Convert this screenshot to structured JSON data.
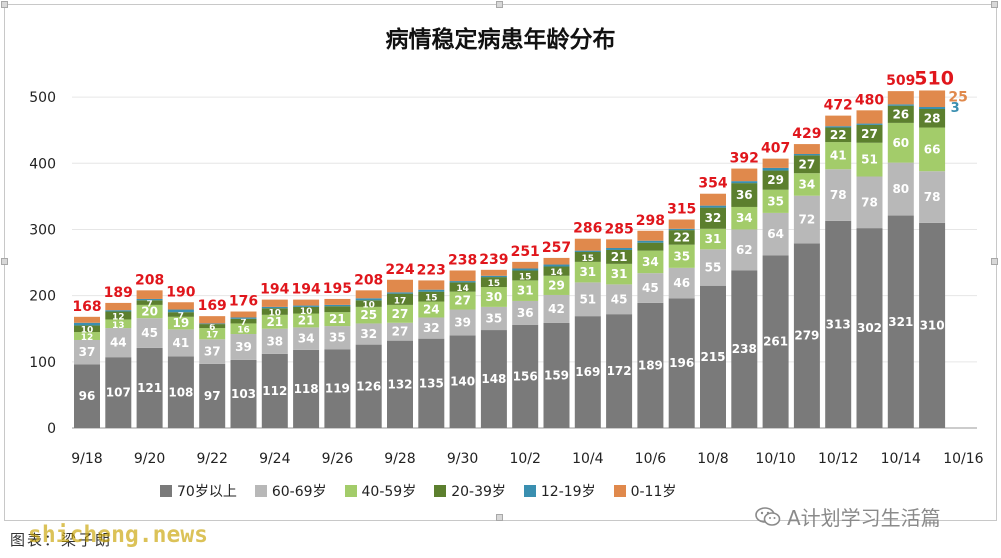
{
  "title": "病情稳定病患年龄分布",
  "source": "图表：梁子朗",
  "watermark_left": "shicheng.news",
  "watermark_right": "A计划学习生活篇",
  "watermark_icon": "wechat-icon",
  "colors": {
    "70岁以上": "#7a7a7a",
    "60-69岁": "#b8b8b8",
    "40-59岁": "#a3cc6a",
    "20-39岁": "#5c7f2e",
    "12-19岁": "#3a8fb0",
    "0-11岁": "#e0894c",
    "total": "#e0161c"
  },
  "chart_data": {
    "type": "bar",
    "stacked": true,
    "title": "病情稳定病患年龄分布",
    "categories": [
      "9/18",
      "9/19",
      "9/20",
      "9/21",
      "9/22",
      "9/23",
      "9/24",
      "9/25",
      "9/26",
      "9/27",
      "9/28",
      "9/29",
      "9/30",
      "10/1",
      "10/2",
      "10/3",
      "10/4",
      "10/5",
      "10/6",
      "10/7",
      "10/8",
      "10/9",
      "10/10",
      "10/11",
      "10/12",
      "10/13",
      "10/14",
      "10/15"
    ],
    "xtick_labels": [
      "9/18",
      "9/20",
      "9/22",
      "9/24",
      "9/26",
      "9/28",
      "9/30",
      "10/2",
      "10/4",
      "10/6",
      "10/8",
      "10/10",
      "10/12",
      "10/14",
      "10/16"
    ],
    "yticks": [
      0,
      100,
      200,
      300,
      400,
      500
    ],
    "ylim": [
      0,
      550
    ],
    "grid": true,
    "legend_position": "bottom",
    "series": [
      {
        "name": "70岁以上",
        "values": [
          96,
          107,
          121,
          108,
          97,
          103,
          112,
          118,
          119,
          126,
          132,
          135,
          140,
          148,
          156,
          159,
          169,
          172,
          189,
          196,
          215,
          238,
          261,
          279,
          313,
          302,
          321,
          310
        ]
      },
      {
        "name": "60-69岁",
        "values": [
          37,
          44,
          45,
          41,
          37,
          39,
          38,
          34,
          35,
          32,
          27,
          32,
          39,
          35,
          36,
          42,
          51,
          45,
          45,
          46,
          55,
          62,
          64,
          72,
          78,
          78,
          80,
          78
        ]
      },
      {
        "name": "40-59岁",
        "values": [
          12,
          13,
          20,
          19,
          17,
          16,
          21,
          21,
          21,
          25,
          27,
          24,
          27,
          30,
          31,
          29,
          31,
          31,
          34,
          35,
          31,
          34,
          35,
          34,
          41,
          51,
          60,
          66
        ]
      },
      {
        "name": "20-39岁",
        "values": [
          10,
          12,
          7,
          7,
          6,
          7,
          10,
          10,
          9,
          10,
          17,
          15,
          14,
          15,
          15,
          14,
          15,
          21,
          12,
          22,
          32,
          36,
          29,
          27,
          22,
          27,
          26,
          28
        ]
      },
      {
        "name": "12-19岁",
        "values": [
          4,
          2,
          2,
          4,
          1,
          2,
          2,
          2,
          2,
          3,
          2,
          3,
          2,
          2,
          3,
          3,
          2,
          3,
          3,
          2,
          3,
          3,
          4,
          2,
          2,
          2,
          2,
          3
        ]
      },
      {
        "name": "0-11岁",
        "values": [
          9,
          11,
          13,
          11,
          11,
          9,
          11,
          9,
          9,
          12,
          19,
          14,
          16,
          9,
          10,
          10,
          18,
          13,
          15,
          14,
          18,
          19,
          14,
          15,
          16,
          20,
          20,
          25
        ]
      }
    ],
    "segment_labels": [
      [
        "96",
        "37",
        "12",
        "10",
        "",
        ""
      ],
      [
        "107",
        "44",
        "13",
        "12",
        "",
        ""
      ],
      [
        "121",
        "45",
        "20",
        "7",
        "",
        ""
      ],
      [
        "108",
        "41",
        "19",
        "7",
        "",
        ""
      ],
      [
        "97",
        "37",
        "17",
        "6",
        "",
        ""
      ],
      [
        "103",
        "39",
        "16",
        "7",
        "",
        ""
      ],
      [
        "112",
        "38",
        "21",
        "10",
        "",
        ""
      ],
      [
        "118",
        "34",
        "21",
        "10",
        "",
        ""
      ],
      [
        "119",
        "35",
        "21",
        "",
        "",
        ""
      ],
      [
        "126",
        "32",
        "25",
        "10",
        "",
        ""
      ],
      [
        "132",
        "27",
        "27",
        "17",
        "",
        ""
      ],
      [
        "135",
        "32",
        "24",
        "15",
        "",
        ""
      ],
      [
        "140",
        "39",
        "27",
        "14",
        "",
        ""
      ],
      [
        "148",
        "35",
        "30",
        "15",
        "",
        ""
      ],
      [
        "156",
        "36",
        "31",
        "15",
        "",
        ""
      ],
      [
        "159",
        "42",
        "29",
        "14",
        "",
        ""
      ],
      [
        "169",
        "51",
        "31",
        "15",
        "",
        ""
      ],
      [
        "172",
        "45",
        "31",
        "21",
        "",
        ""
      ],
      [
        "189",
        "45",
        "34",
        "",
        "",
        ""
      ],
      [
        "196",
        "46",
        "35",
        "22",
        "",
        ""
      ],
      [
        "215",
        "55",
        "31",
        "32",
        "",
        ""
      ],
      [
        "238",
        "62",
        "34",
        "36",
        "",
        ""
      ],
      [
        "261",
        "64",
        "35",
        "29",
        "",
        ""
      ],
      [
        "279",
        "72",
        "34",
        "27",
        "",
        ""
      ],
      [
        "313",
        "78",
        "41",
        "22",
        "",
        ""
      ],
      [
        "302",
        "78",
        "51",
        "27",
        "",
        ""
      ],
      [
        "321",
        "80",
        "60",
        "26",
        "",
        ""
      ],
      [
        "310",
        "78",
        "66",
        "28",
        "3",
        "25"
      ]
    ],
    "totals": [
      168,
      189,
      208,
      190,
      169,
      176,
      194,
      194,
      195,
      208,
      224,
      223,
      238,
      239,
      251,
      257,
      286,
      285,
      298,
      315,
      354,
      392,
      407,
      429,
      472,
      480,
      509,
      510
    ]
  }
}
